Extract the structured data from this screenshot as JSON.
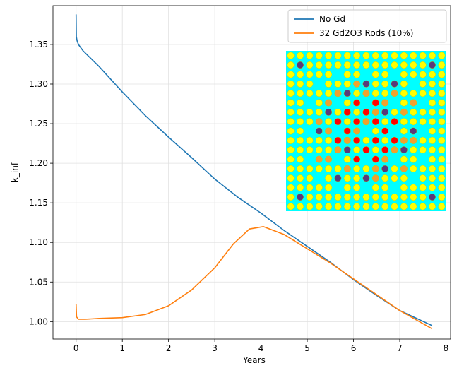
{
  "chart_data": {
    "type": "line",
    "xlabel": "Years",
    "ylabel": "k_inf",
    "xlim": [
      -0.5,
      8.1
    ],
    "ylim": [
      0.978,
      1.399
    ],
    "xticks": [
      0,
      1,
      2,
      3,
      4,
      5,
      6,
      7,
      8
    ],
    "yticks": [
      {
        "value": 1.0,
        "label": "1.00"
      },
      {
        "value": 1.05,
        "label": "1.05"
      },
      {
        "value": 1.1,
        "label": "1.10"
      },
      {
        "value": 1.15,
        "label": "1.15"
      },
      {
        "value": 1.2,
        "label": "1.20"
      },
      {
        "value": 1.25,
        "label": "1.25"
      },
      {
        "value": 1.3,
        "label": "1.30"
      },
      {
        "value": 1.35,
        "label": "1.35"
      }
    ],
    "grid": true,
    "legend": "upper right",
    "series": [
      {
        "name": "No Gd",
        "color": "#1f77b4",
        "x": [
          0,
          0.005,
          0.02,
          0.05,
          0.15,
          0.5,
          1.0,
          1.5,
          2.0,
          2.5,
          3.0,
          3.5,
          4.0,
          4.5,
          5.0,
          5.5,
          6.0,
          6.5,
          7.0,
          7.7
        ],
        "values": [
          1.388,
          1.36,
          1.355,
          1.35,
          1.342,
          1.322,
          1.29,
          1.26,
          1.233,
          1.207,
          1.18,
          1.157,
          1.137,
          1.115,
          1.095,
          1.075,
          1.053,
          1.033,
          1.014,
          0.995
        ]
      },
      {
        "name": "32 Gd2O3 Rods (10%)",
        "color": "#ff7f0e",
        "x": [
          0,
          0.01,
          0.05,
          0.2,
          0.5,
          1.0,
          1.5,
          2.0,
          2.5,
          3.0,
          3.4,
          3.75,
          4.05,
          4.5,
          5.0,
          5.5,
          6.0,
          6.5,
          7.0,
          7.7
        ],
        "values": [
          1.022,
          1.006,
          1.003,
          1.003,
          1.004,
          1.005,
          1.009,
          1.02,
          1.04,
          1.068,
          1.098,
          1.117,
          1.12,
          1.11,
          1.092,
          1.074,
          1.054,
          1.034,
          1.014,
          0.991
        ]
      }
    ]
  }
}
